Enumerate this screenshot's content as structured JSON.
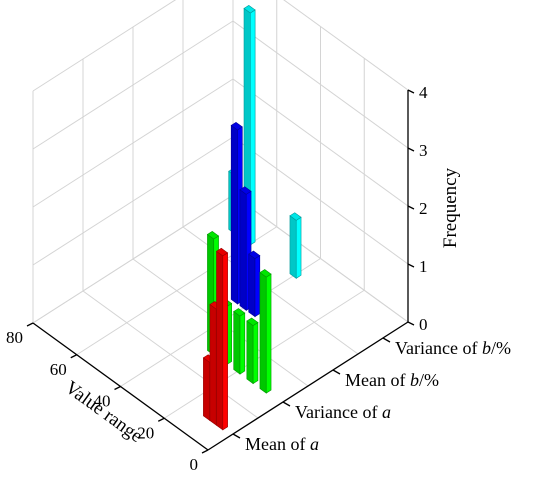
{
  "chart_data": {
    "type": "bar",
    "subtype": "3d-bar",
    "title": "",
    "xlabel": "Value range",
    "ylabel": "",
    "zlabel": "Frequency",
    "x_ticks": [
      "0",
      "20",
      "40",
      "60",
      "80"
    ],
    "z_ticks": [
      "0",
      "1",
      "2",
      "3",
      "4"
    ],
    "xlim": [
      0,
      80
    ],
    "zlim": [
      0,
      4
    ],
    "grid": true,
    "categories": [
      {
        "label": "Mean of ",
        "italic": "a",
        "suffix": ""
      },
      {
        "label": "Variance of ",
        "italic": "a",
        "suffix": ""
      },
      {
        "label": "Mean of ",
        "italic": "b",
        "suffix": "/%"
      },
      {
        "label": "Variance of ",
        "italic": "b",
        "suffix": "/%"
      }
    ],
    "series": [
      {
        "category": "Mean of a",
        "color": "#ff0000",
        "x": [
          5,
          8,
          11
        ],
        "values": [
          3,
          2,
          1
        ]
      },
      {
        "category": "Variance of a",
        "color": "#00ff00",
        "x": [
          8,
          14,
          20,
          26,
          32
        ],
        "values": [
          2,
          1,
          1,
          1,
          2
        ]
      },
      {
        "category": "Mean of b/%",
        "color": "#0000ff",
        "x": [
          36,
          40,
          44
        ],
        "values": [
          1,
          2,
          3
        ]
      },
      {
        "category": "Variance of b/%",
        "color": "#00ffff",
        "x": [
          40,
          61,
          68
        ],
        "values": [
          1,
          4,
          1
        ]
      }
    ]
  }
}
